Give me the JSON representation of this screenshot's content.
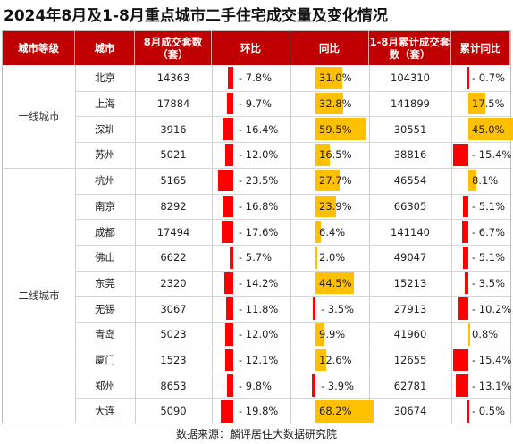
{
  "title": "2024年8月及1-8月重点城市二手住宅成交量及变化情况",
  "source": "数据来源：麟评居住大数据研究院",
  "colors": {
    "header": "#c00000",
    "negative": "#ff0000",
    "positive": "#ffc000"
  },
  "chart_data": {
    "type": "table",
    "headers": [
      "城市等级",
      "城市",
      "8月成交套数（套）",
      "环比",
      "同比",
      "1-8月累计成交套数（套）",
      "累计同比"
    ],
    "tiers": [
      {
        "label": "一线城市",
        "start_row": 0,
        "count": 4
      },
      {
        "label": "二线城市",
        "start_row": 4,
        "count": 10
      }
    ],
    "rows": [
      {
        "city": "北京",
        "aug": "14363",
        "mom": -7.8,
        "mom_label": "- 7.8%",
        "yoy": 31.0,
        "yoy_label": "31.0%",
        "ytd": "104310",
        "ytd_yoy": -0.7,
        "ytd_yoy_label": "- 0.7%"
      },
      {
        "city": "上海",
        "aug": "17884",
        "mom": -9.7,
        "mom_label": "- 9.7%",
        "yoy": 32.8,
        "yoy_label": "32.8%",
        "ytd": "141899",
        "ytd_yoy": 17.5,
        "ytd_yoy_label": "17.5%"
      },
      {
        "city": "深圳",
        "aug": "3916",
        "mom": -16.4,
        "mom_label": "- 16.4%",
        "yoy": 59.5,
        "yoy_label": "59.5%",
        "ytd": "30551",
        "ytd_yoy": 45.0,
        "ytd_yoy_label": "45.0%"
      },
      {
        "city": "苏州",
        "aug": "5021",
        "mom": -12.0,
        "mom_label": "- 12.0%",
        "yoy": 16.5,
        "yoy_label": "16.5%",
        "ytd": "38816",
        "ytd_yoy": -15.4,
        "ytd_yoy_label": "- 15.4%"
      },
      {
        "city": "杭州",
        "aug": "5165",
        "mom": -23.5,
        "mom_label": "- 23.5%",
        "yoy": 27.7,
        "yoy_label": "27.7%",
        "ytd": "46554",
        "ytd_yoy": 8.1,
        "ytd_yoy_label": "8.1%"
      },
      {
        "city": "南京",
        "aug": "8292",
        "mom": -16.8,
        "mom_label": "- 16.8%",
        "yoy": 23.9,
        "yoy_label": "23.9%",
        "ytd": "66305",
        "ytd_yoy": -5.1,
        "ytd_yoy_label": "- 5.1%"
      },
      {
        "city": "成都",
        "aug": "17494",
        "mom": -17.6,
        "mom_label": "- 17.6%",
        "yoy": 6.4,
        "yoy_label": "6.4%",
        "ytd": "141140",
        "ytd_yoy": -6.7,
        "ytd_yoy_label": "- 6.7%"
      },
      {
        "city": "佛山",
        "aug": "6622",
        "mom": -5.7,
        "mom_label": "- 5.7%",
        "yoy": 2.0,
        "yoy_label": "2.0%",
        "ytd": "49047",
        "ytd_yoy": -5.1,
        "ytd_yoy_label": "- 5.1%"
      },
      {
        "city": "东莞",
        "aug": "2320",
        "mom": -14.2,
        "mom_label": "- 14.2%",
        "yoy": 44.5,
        "yoy_label": "44.5%",
        "ytd": "15213",
        "ytd_yoy": -3.5,
        "ytd_yoy_label": "- 3.5%"
      },
      {
        "city": "无锡",
        "aug": "3067",
        "mom": -11.8,
        "mom_label": "- 11.8%",
        "yoy": -3.5,
        "yoy_label": "- 3.5%",
        "ytd": "27913",
        "ytd_yoy": -10.2,
        "ytd_yoy_label": "- 10.2%"
      },
      {
        "city": "青岛",
        "aug": "5023",
        "mom": -12.0,
        "mom_label": "- 12.0%",
        "yoy": 9.9,
        "yoy_label": "9.9%",
        "ytd": "41960",
        "ytd_yoy": 0.8,
        "ytd_yoy_label": "0.8%"
      },
      {
        "city": "厦门",
        "aug": "1523",
        "mom": -12.1,
        "mom_label": "- 12.1%",
        "yoy": 12.6,
        "yoy_label": "12.6%",
        "ytd": "12655",
        "ytd_yoy": -15.4,
        "ytd_yoy_label": "- 15.4%"
      },
      {
        "city": "郑州",
        "aug": "8653",
        "mom": -9.8,
        "mom_label": "- 9.8%",
        "yoy": -3.9,
        "yoy_label": "- 3.9%",
        "ytd": "62781",
        "ytd_yoy": -13.1,
        "ytd_yoy_label": "- 13.1%"
      },
      {
        "city": "大连",
        "aug": "5090",
        "mom": -19.8,
        "mom_label": "- 19.8%",
        "yoy": 68.2,
        "yoy_label": "68.2%",
        "ytd": "30674",
        "ytd_yoy": -0.5,
        "ytd_yoy_label": "- 0.5%"
      }
    ]
  }
}
